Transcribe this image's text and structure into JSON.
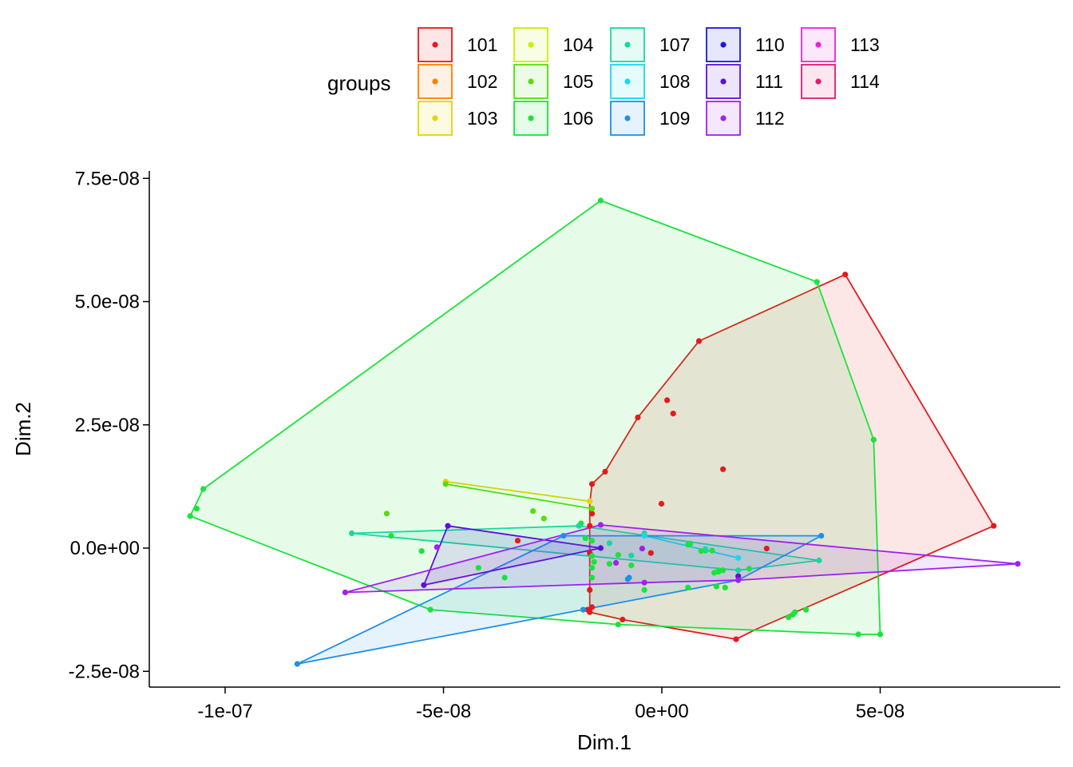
{
  "chart_data": {
    "type": "scatter",
    "xlabel": "Dim.1",
    "ylabel": "Dim.2",
    "xlim": [
      -1.2e-07,
      9e-08
    ],
    "ylim": [
      -2.8e-08,
      7.65e-08
    ],
    "x_ticks": [
      {
        "value": -1e-07,
        "label": "-1e-07"
      },
      {
        "value": -5e-08,
        "label": "-5e-08"
      },
      {
        "value": 0,
        "label": "0e+00"
      },
      {
        "value": 5e-08,
        "label": "5e-08"
      }
    ],
    "y_ticks": [
      {
        "value": -2.5e-08,
        "label": "-2.5e-08"
      },
      {
        "value": 0,
        "label": "0.0e+00"
      },
      {
        "value": 2.5e-08,
        "label": "2.5e-08"
      },
      {
        "value": 5e-08,
        "label": "5.0e-08"
      },
      {
        "value": 7.5e-08,
        "label": "7.5e-08"
      }
    ],
    "grid": false,
    "legend": {
      "title": "groups",
      "position": "top",
      "columns": 5
    },
    "series": [
      {
        "name": "101",
        "color": "#E41A1C",
        "hull": [
          [
            -1.65e-08,
            -1.3e-08
          ],
          [
            -1.65e-08,
            9e-09
          ],
          [
            -1.6e-08,
            1.3e-08
          ],
          [
            -1.3e-08,
            1.55e-08
          ],
          [
            -5.5e-09,
            2.65e-08
          ],
          [
            8.5e-09,
            4.2e-08
          ],
          [
            4.2e-08,
            5.55e-08
          ],
          [
            7.6e-08,
            4.5e-09
          ],
          [
            2.15e-08,
            -1.65e-08
          ],
          [
            1.7e-08,
            -1.85e-08
          ],
          [
            -9e-09,
            -1.45e-08
          ]
        ],
        "points": [
          [
            -1.65e-08,
            -1.3e-08
          ],
          [
            -1.6e-08,
            1.3e-08
          ],
          [
            -1.3e-08,
            1.55e-08
          ],
          [
            -5.5e-09,
            2.65e-08
          ],
          [
            8.5e-09,
            4.2e-08
          ],
          [
            4.2e-08,
            5.55e-08
          ],
          [
            7.6e-08,
            4.5e-09
          ],
          [
            1.7e-08,
            -1.85e-08
          ],
          [
            -9e-09,
            -1.45e-08
          ],
          [
            1.2e-09,
            3e-08
          ],
          [
            2.6e-09,
            2.73e-08
          ],
          [
            1.4e-08,
            1.6e-08
          ],
          [
            -1e-10,
            9e-09
          ],
          [
            -1.65e-08,
            4.5e-09
          ],
          [
            -1.65e-08,
            -1e-09
          ],
          [
            -1.65e-08,
            -8.5e-09
          ],
          [
            -1.6e-08,
            -1.2e-08
          ],
          [
            -1.7e-08,
            -1.25e-08
          ],
          [
            -1.6e-08,
            7e-09
          ],
          [
            -3.3e-08,
            1.5e-09
          ],
          [
            2.4e-08,
            -1e-10
          ],
          [
            -2.5e-09,
            -1e-09
          ]
        ]
      },
      {
        "name": "102",
        "color": "#FF7F00",
        "hull": [],
        "points": []
      },
      {
        "name": "103",
        "color": "#E8D400",
        "hull": [
          [
            -4.95e-08,
            1.35e-08
          ],
          [
            -1.65e-08,
            9.5e-09
          ]
        ],
        "points": [
          [
            -4.95e-08,
            1.35e-08
          ],
          [
            -1.65e-08,
            9.5e-09
          ]
        ]
      },
      {
        "name": "104",
        "color": "#C8F000",
        "hull": [],
        "points": []
      },
      {
        "name": "105",
        "color": "#55DD10",
        "hull": [
          [
            -4.95e-08,
            1.3e-08
          ],
          [
            -1.6e-08,
            8e-09
          ]
        ],
        "points": [
          [
            -4.95e-08,
            1.3e-08
          ],
          [
            -1.6e-08,
            8e-09
          ],
          [
            -2.95e-08,
            7.5e-09
          ],
          [
            -2.7e-08,
            6e-09
          ],
          [
            -6.3e-08,
            7e-09
          ]
        ]
      },
      {
        "name": "106",
        "color": "#1AE33A",
        "hull": [
          [
            -1.08e-07,
            6.5e-09
          ],
          [
            -1.05e-07,
            1.2e-08
          ],
          [
            -1.4e-08,
            7.05e-08
          ],
          [
            3.55e-08,
            5.4e-08
          ],
          [
            4.85e-08,
            2.2e-08
          ],
          [
            5e-08,
            -1.75e-08
          ],
          [
            4.5e-08,
            -1.75e-08
          ],
          [
            -1e-08,
            -1.55e-08
          ],
          [
            -5.3e-08,
            -1.25e-08
          ]
        ],
        "points": [
          [
            -1.08e-07,
            6.5e-09
          ],
          [
            -1.065e-07,
            8e-09
          ],
          [
            -1.05e-07,
            1.2e-08
          ],
          [
            -1.4e-08,
            7.05e-08
          ],
          [
            3.55e-08,
            5.4e-08
          ],
          [
            4.85e-08,
            2.2e-08
          ],
          [
            5e-08,
            -1.75e-08
          ],
          [
            4.5e-08,
            -1.75e-08
          ],
          [
            -1e-08,
            -1.55e-08
          ],
          [
            -5.3e-08,
            -1.25e-08
          ],
          [
            -6.2e-08,
            2.5e-09
          ],
          [
            -4.2e-08,
            -4e-09
          ],
          [
            -3.6e-08,
            -6e-09
          ],
          [
            -5.5e-08,
            -6e-10
          ],
          [
            -1.6e-08,
            -1.6e-09
          ],
          [
            -1.6e-08,
            -4e-09
          ],
          [
            -1.6e-08,
            -6e-09
          ],
          [
            -1.55e-08,
            -2.8e-09
          ],
          [
            -1.2e-08,
            -3.2e-09
          ],
          [
            -1e-08,
            -1.4e-09
          ],
          [
            -7e-09,
            -3.5e-09
          ],
          [
            -4e-09,
            -8.5e-09
          ],
          [
            6e-09,
            -8e-09
          ],
          [
            1.15e-08,
            -5e-10
          ],
          [
            1.3e-08,
            -4.8e-09
          ],
          [
            1.2e-08,
            -5e-09
          ],
          [
            1.45e-08,
            -8e-09
          ],
          [
            2.9e-08,
            -1.4e-08
          ],
          [
            3e-08,
            -1.35e-08
          ],
          [
            3.3e-08,
            -1.25e-08
          ],
          [
            3.05e-08,
            -1.3e-08
          ],
          [
            1e-08,
            -5e-10
          ],
          [
            9e-09,
            -6e-10
          ],
          [
            6e-09,
            7e-10
          ],
          [
            -1.85e-08,
            5e-09
          ],
          [
            -1.75e-08,
            2e-09
          ],
          [
            -1.6e-08,
            1.5e-09
          ],
          [
            1.25e-08,
            -7.8e-09
          ],
          [
            1.4e-08,
            -4.5e-09
          ],
          [
            2e-08,
            -4.2e-09
          ],
          [
            1.3e-08,
            -4.5e-09
          ],
          [
            6.5e-09,
            9e-10
          ]
        ]
      },
      {
        "name": "107",
        "color": "#18D8A0",
        "hull": [
          [
            -7.1e-08,
            3e-09
          ],
          [
            -1.9e-08,
            4.5e-09
          ],
          [
            3.6e-08,
            -2.5e-09
          ],
          [
            1.75e-08,
            -4.5e-09
          ]
        ],
        "points": [
          [
            -7.1e-08,
            3e-09
          ],
          [
            -1.9e-08,
            4.5e-09
          ],
          [
            3.6e-08,
            -2.5e-09
          ],
          [
            1.75e-08,
            -4.5e-09
          ],
          [
            -7e-09,
            -1.5e-09
          ],
          [
            -1.2e-08,
            1e-09
          ],
          [
            1e-08,
            -2e-10
          ],
          [
            -4e-09,
            3e-09
          ]
        ]
      },
      {
        "name": "108",
        "color": "#18D8F0",
        "hull": [
          [
            -4e-09,
            2.5e-09
          ],
          [
            1.75e-08,
            -2e-09
          ]
        ],
        "points": [
          [
            -4e-09,
            2.5e-09
          ],
          [
            1.75e-08,
            -2e-09
          ]
        ]
      },
      {
        "name": "109",
        "color": "#1E90E8",
        "hull": [
          [
            -8.35e-08,
            -2.35e-08
          ],
          [
            -2.25e-08,
            2.5e-09
          ],
          [
            3.65e-08,
            2.5e-09
          ],
          [
            1.75e-08,
            -6.5e-09
          ]
        ],
        "points": [
          [
            -8.35e-08,
            -2.35e-08
          ],
          [
            -2.25e-08,
            2.5e-09
          ],
          [
            3.65e-08,
            2.5e-09
          ],
          [
            1.75e-08,
            -6.5e-09
          ],
          [
            -7.5e-09,
            -6e-09
          ],
          [
            -7.8e-09,
            -6.3e-09
          ],
          [
            -1.8e-08,
            -1.25e-08
          ]
        ]
      },
      {
        "name": "110",
        "color": "#1818E0",
        "hull": [],
        "points": []
      },
      {
        "name": "111",
        "color": "#5A10DC",
        "hull": [
          [
            -5.45e-08,
            -7.5e-09
          ],
          [
            -4.9e-08,
            4.5e-09
          ],
          [
            -1.4e-08,
            0
          ]
        ],
        "points": [
          [
            -5.45e-08,
            -7.5e-09
          ],
          [
            -4.9e-08,
            4.5e-09
          ],
          [
            -1.4e-08,
            0
          ],
          [
            1.75e-08,
            -5.7e-09
          ]
        ]
      },
      {
        "name": "112",
        "color": "#A020F0",
        "hull": [
          [
            -7.25e-08,
            -9e-09
          ],
          [
            -1.4e-08,
            4.7e-09
          ],
          [
            8.15e-08,
            -3.2e-09
          ],
          [
            1.75e-08,
            -6.5e-09
          ],
          [
            -4e-09,
            -7e-09
          ]
        ],
        "points": [
          [
            -7.25e-08,
            -9e-09
          ],
          [
            -1.4e-08,
            4.7e-09
          ],
          [
            8.15e-08,
            -3.2e-09
          ],
          [
            1.75e-08,
            -6.5e-09
          ],
          [
            -4e-09,
            -7e-09
          ],
          [
            -5.15e-08,
            2e-10
          ],
          [
            -1.05e-08,
            -3e-09
          ],
          [
            -4.5e-09,
            -1e-10
          ]
        ]
      },
      {
        "name": "113",
        "color": "#F020D8",
        "hull": [],
        "points": []
      },
      {
        "name": "114",
        "color": "#E8186E",
        "hull": [],
        "points": []
      }
    ]
  }
}
